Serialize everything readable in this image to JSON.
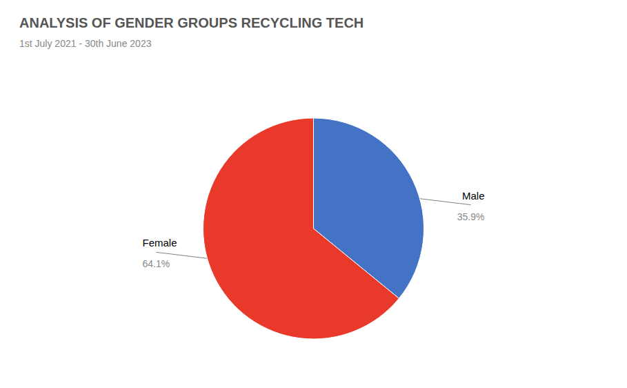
{
  "chart_data": {
    "type": "pie",
    "title": "ANALYSIS OF GENDER GROUPS RECYCLING TECH",
    "subtitle": "1st July 2021 - 30th June 2023",
    "categories": [
      "Male",
      "Female"
    ],
    "values": [
      35.9,
      64.1
    ],
    "value_labels": [
      "35.9%",
      "64.1%"
    ],
    "colors": [
      "#4472C4",
      "#E8392A"
    ],
    "data_labels": true,
    "annotations": [
      {
        "text": "Male\n35.9%"
      }
    ]
  }
}
